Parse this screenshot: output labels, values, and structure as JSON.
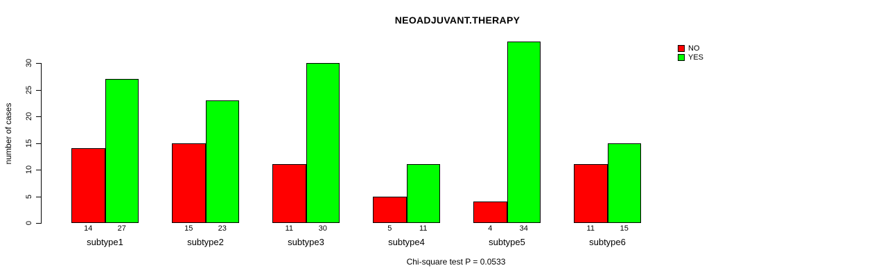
{
  "chart_data": {
    "type": "bar",
    "title": "NEOADJUVANT.THERAPY",
    "xlabel": "",
    "ylabel": "number of cases",
    "footer": "Chi-square test P = 0.0533",
    "categories": [
      "subtype1",
      "subtype2",
      "subtype3",
      "subtype4",
      "subtype5",
      "subtype6"
    ],
    "series": [
      {
        "name": "NO",
        "color": "#ff0000",
        "values": [
          14,
          15,
          11,
          5,
          4,
          11
        ]
      },
      {
        "name": "YES",
        "color": "#00ff00",
        "values": [
          27,
          23,
          30,
          11,
          34,
          15
        ]
      }
    ],
    "bar_value_labels": [
      [
        "14",
        "27"
      ],
      [
        "15",
        "23"
      ],
      [
        "11",
        "30"
      ],
      [
        "5",
        "11"
      ],
      [
        "4",
        "34"
      ],
      [
        "11",
        "15"
      ]
    ],
    "yticks": [
      0,
      5,
      10,
      15,
      20,
      25,
      30
    ],
    "ylim": [
      0,
      34
    ],
    "grid": false,
    "legend_position": "top-right",
    "colors": {
      "background": "#ffffff",
      "axis": "#000000",
      "text": "#000000"
    }
  }
}
